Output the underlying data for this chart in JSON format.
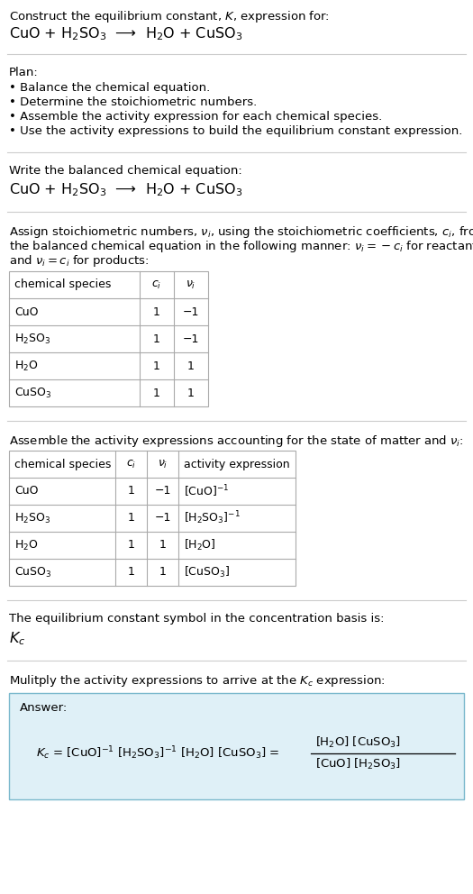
{
  "bg_color": "#ffffff",
  "text_color": "#000000",
  "answer_bg": "#dff0f7",
  "answer_border": "#7ab8cc",
  "title_line1": "Construct the equilibrium constant, $K$, expression for:",
  "title_line2": "CuO + H$_2$SO$_3$  ⟶  H$_2$O + CuSO$_3$",
  "plan_header": "Plan:",
  "plan_bullets": [
    "• Balance the chemical equation.",
    "• Determine the stoichiometric numbers.",
    "• Assemble the activity expression for each chemical species.",
    "• Use the activity expressions to build the equilibrium constant expression."
  ],
  "section2_header": "Write the balanced chemical equation:",
  "section2_eq": "CuO + H$_2$SO$_3$  ⟶  H$_2$O + CuSO$_3$",
  "section3_lines": [
    "Assign stoichiometric numbers, $\\nu_i$, using the stoichiometric coefficients, $c_i$, from",
    "the balanced chemical equation in the following manner: $\\nu_i = -c_i$ for reactants",
    "and $\\nu_i = c_i$ for products:"
  ],
  "table1_headers": [
    "chemical species",
    "$c_i$",
    "$\\nu_i$"
  ],
  "table1_rows": [
    [
      "CuO",
      "1",
      "−1"
    ],
    [
      "H$_2$SO$_3$",
      "1",
      "−1"
    ],
    [
      "H$_2$O",
      "1",
      "1"
    ],
    [
      "CuSO$_3$",
      "1",
      "1"
    ]
  ],
  "section4_header": "Assemble the activity expressions accounting for the state of matter and $\\nu_i$:",
  "table2_headers": [
    "chemical species",
    "$c_i$",
    "$\\nu_i$",
    "activity expression"
  ],
  "table2_rows": [
    [
      "CuO",
      "1",
      "−1",
      "[CuO]$^{-1}$"
    ],
    [
      "H$_2$SO$_3$",
      "1",
      "−1",
      "[H$_2$SO$_3$]$^{-1}$"
    ],
    [
      "H$_2$O",
      "1",
      "1",
      "[H$_2$O]"
    ],
    [
      "CuSO$_3$",
      "1",
      "1",
      "[CuSO$_3$]"
    ]
  ],
  "section5_header": "The equilibrium constant symbol in the concentration basis is:",
  "section5_symbol": "$K_c$",
  "section6_header": "Mulitply the activity expressions to arrive at the $K_c$ expression:",
  "answer_label": "Answer:",
  "answer_eq": "$K_c$ = [CuO]$^{-1}$ [H$_2$SO$_3$]$^{-1}$ [H$_2$O] [CuSO$_3$] =",
  "answer_frac_num": "[H$_2$O] [CuSO$_3$]",
  "answer_frac_den": "[CuO] [H$_2$SO$_3$]"
}
